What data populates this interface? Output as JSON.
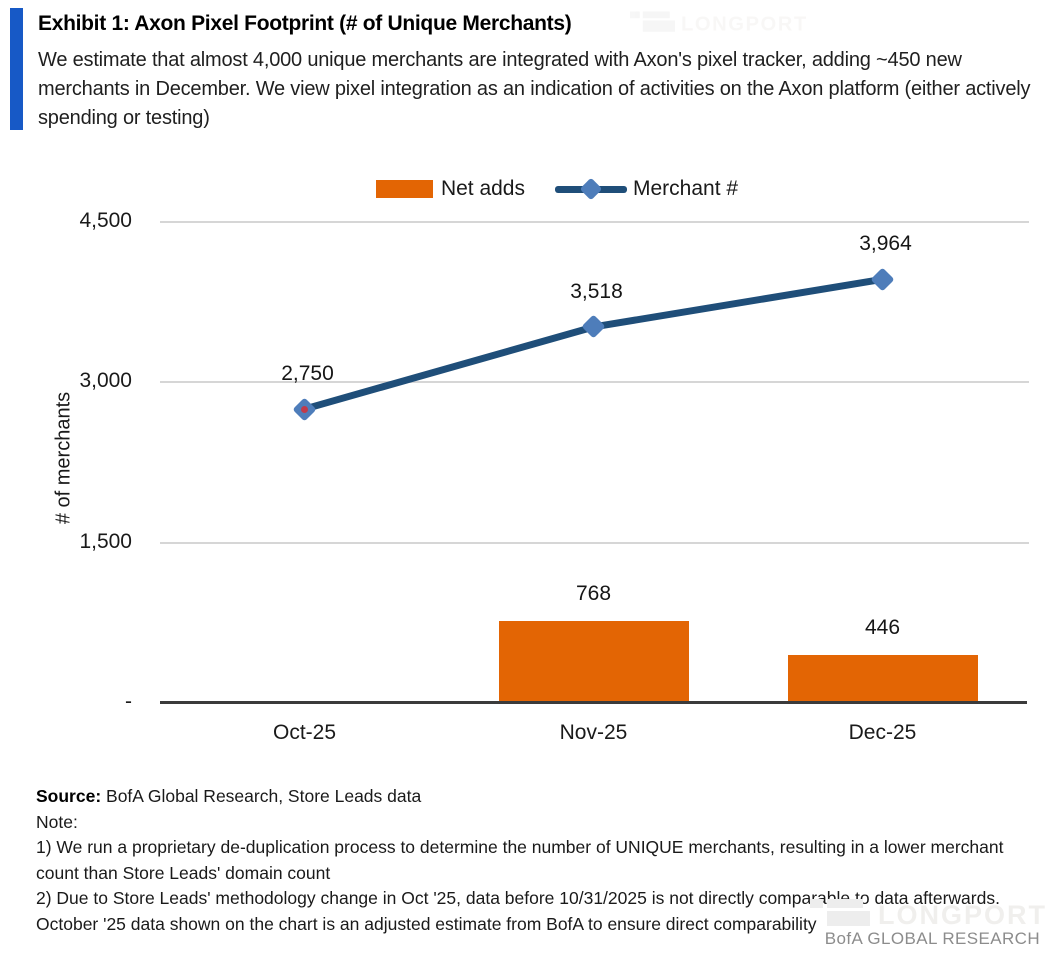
{
  "header": {
    "exhibit_title": "Exhibit 1: Axon Pixel Footprint (# of Unique Merchants)",
    "subtitle": "We estimate that almost 4,000 unique merchants are integrated with Axon's pixel tracker, adding ~450 new merchants in December. We view pixel integration as an indication of activities on the Axon platform (either actively spending or testing)",
    "accent_bar_color": "#1759C6"
  },
  "chart_data": {
    "type": "combo",
    "categories": [
      "Oct-25",
      "Nov-25",
      "Dec-25"
    ],
    "series": [
      {
        "name": "Net adds",
        "type": "bar",
        "color": "#E36504",
        "values": [
          null,
          768,
          446
        ],
        "labels": [
          "",
          "768",
          "446"
        ]
      },
      {
        "name": "Merchant #",
        "type": "line",
        "line_color": "#1F4E79",
        "marker_color": "#4E7DBA",
        "values": [
          2750,
          3518,
          3964
        ],
        "labels": [
          "2,750",
          "3,518",
          "3,964"
        ],
        "special_marker_dot": {
          "index": 0,
          "color": "#C13A4A"
        }
      }
    ],
    "ylabel": "# of merchants",
    "ylim": [
      0,
      4500
    ],
    "yticks": [
      {
        "value": 4500,
        "label": "4,500"
      },
      {
        "value": 3000,
        "label": "3,000"
      },
      {
        "value": 1500,
        "label": "1,500"
      },
      {
        "value": 0,
        "label": "-"
      }
    ],
    "gridline_color": "#D6D6D6",
    "axis_color": "#3B3B3B",
    "legend_position": "top-center",
    "grid": true
  },
  "footer": {
    "source_label": "Source:",
    "source_text": " BofA Global Research, Store Leads data",
    "note_label": "Note:",
    "notes": [
      "1) We run a proprietary de-duplication process to determine the number of UNIQUE merchants, resulting in a lower merchant count than Store Leads' domain count",
      "2) Due to Store Leads' methodology change in Oct '25, data before 10/31/2025 is not directly comparable to data afterwards. October '25 data shown on the chart is an adjusted estimate from BofA to ensure direct comparability"
    ],
    "branding": "BofA GLOBAL RESEARCH",
    "watermark": "LONGPORT"
  }
}
